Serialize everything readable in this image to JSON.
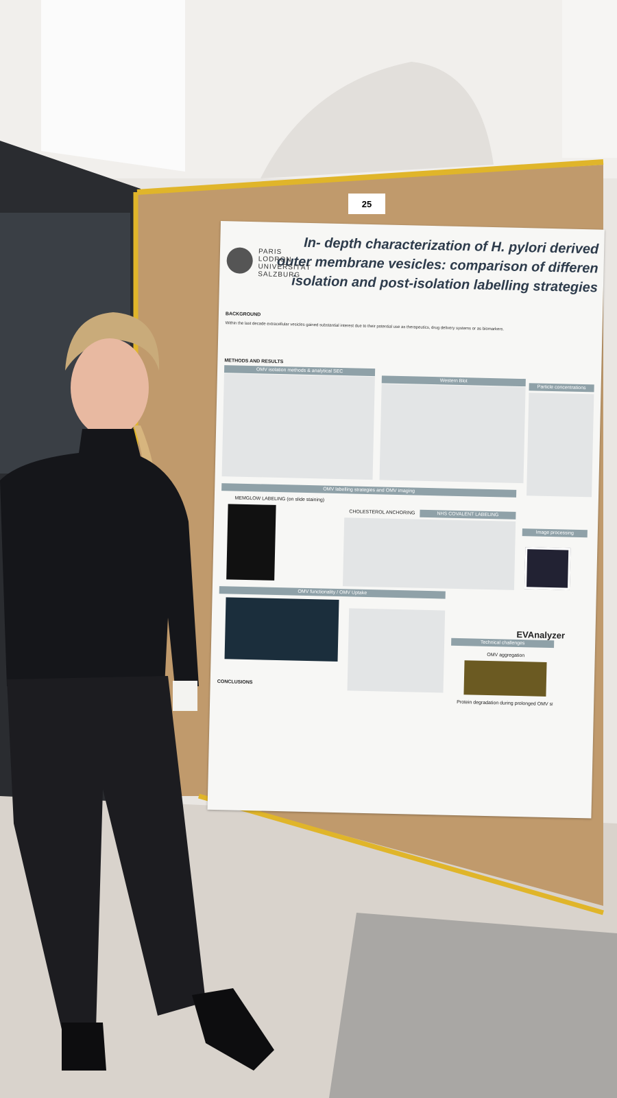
{
  "board_number": "25",
  "poster": {
    "university": [
      "PARIS",
      "LODRON",
      "UNIVERSITÄT",
      "SALZBURG"
    ],
    "title": [
      "In- depth characterization of H. pylori derived",
      "outer membrane vesicles: comparison of differen",
      "isolation and post-isolation labelling strategies"
    ],
    "sections": [
      "BACKGROUND",
      "METHODS AND RESULTS",
      "CONCLUSIONS"
    ],
    "background_text": "Within the last decade extracellular vesicles gained substantial interest due to their potential use as therapeutics, drug delivery systems or as biomarkers.",
    "panels": [
      "OMV isolation methods & analytical SEC",
      "Western Blot",
      "Particle concentrations",
      "OMV labelling strategies and OMV imaging",
      "MEMGLOW LABELING (on slide staining)",
      "CHOLESTEROL ANCHORING",
      "NHS COVALENT LABELING",
      "Image processing",
      "OMV functionality / OMV Uptake",
      "Technical challenges",
      "OMV aggregation",
      "Protein degradation during prolonged OMV storage"
    ],
    "logo": "EVAnalyzer"
  }
}
